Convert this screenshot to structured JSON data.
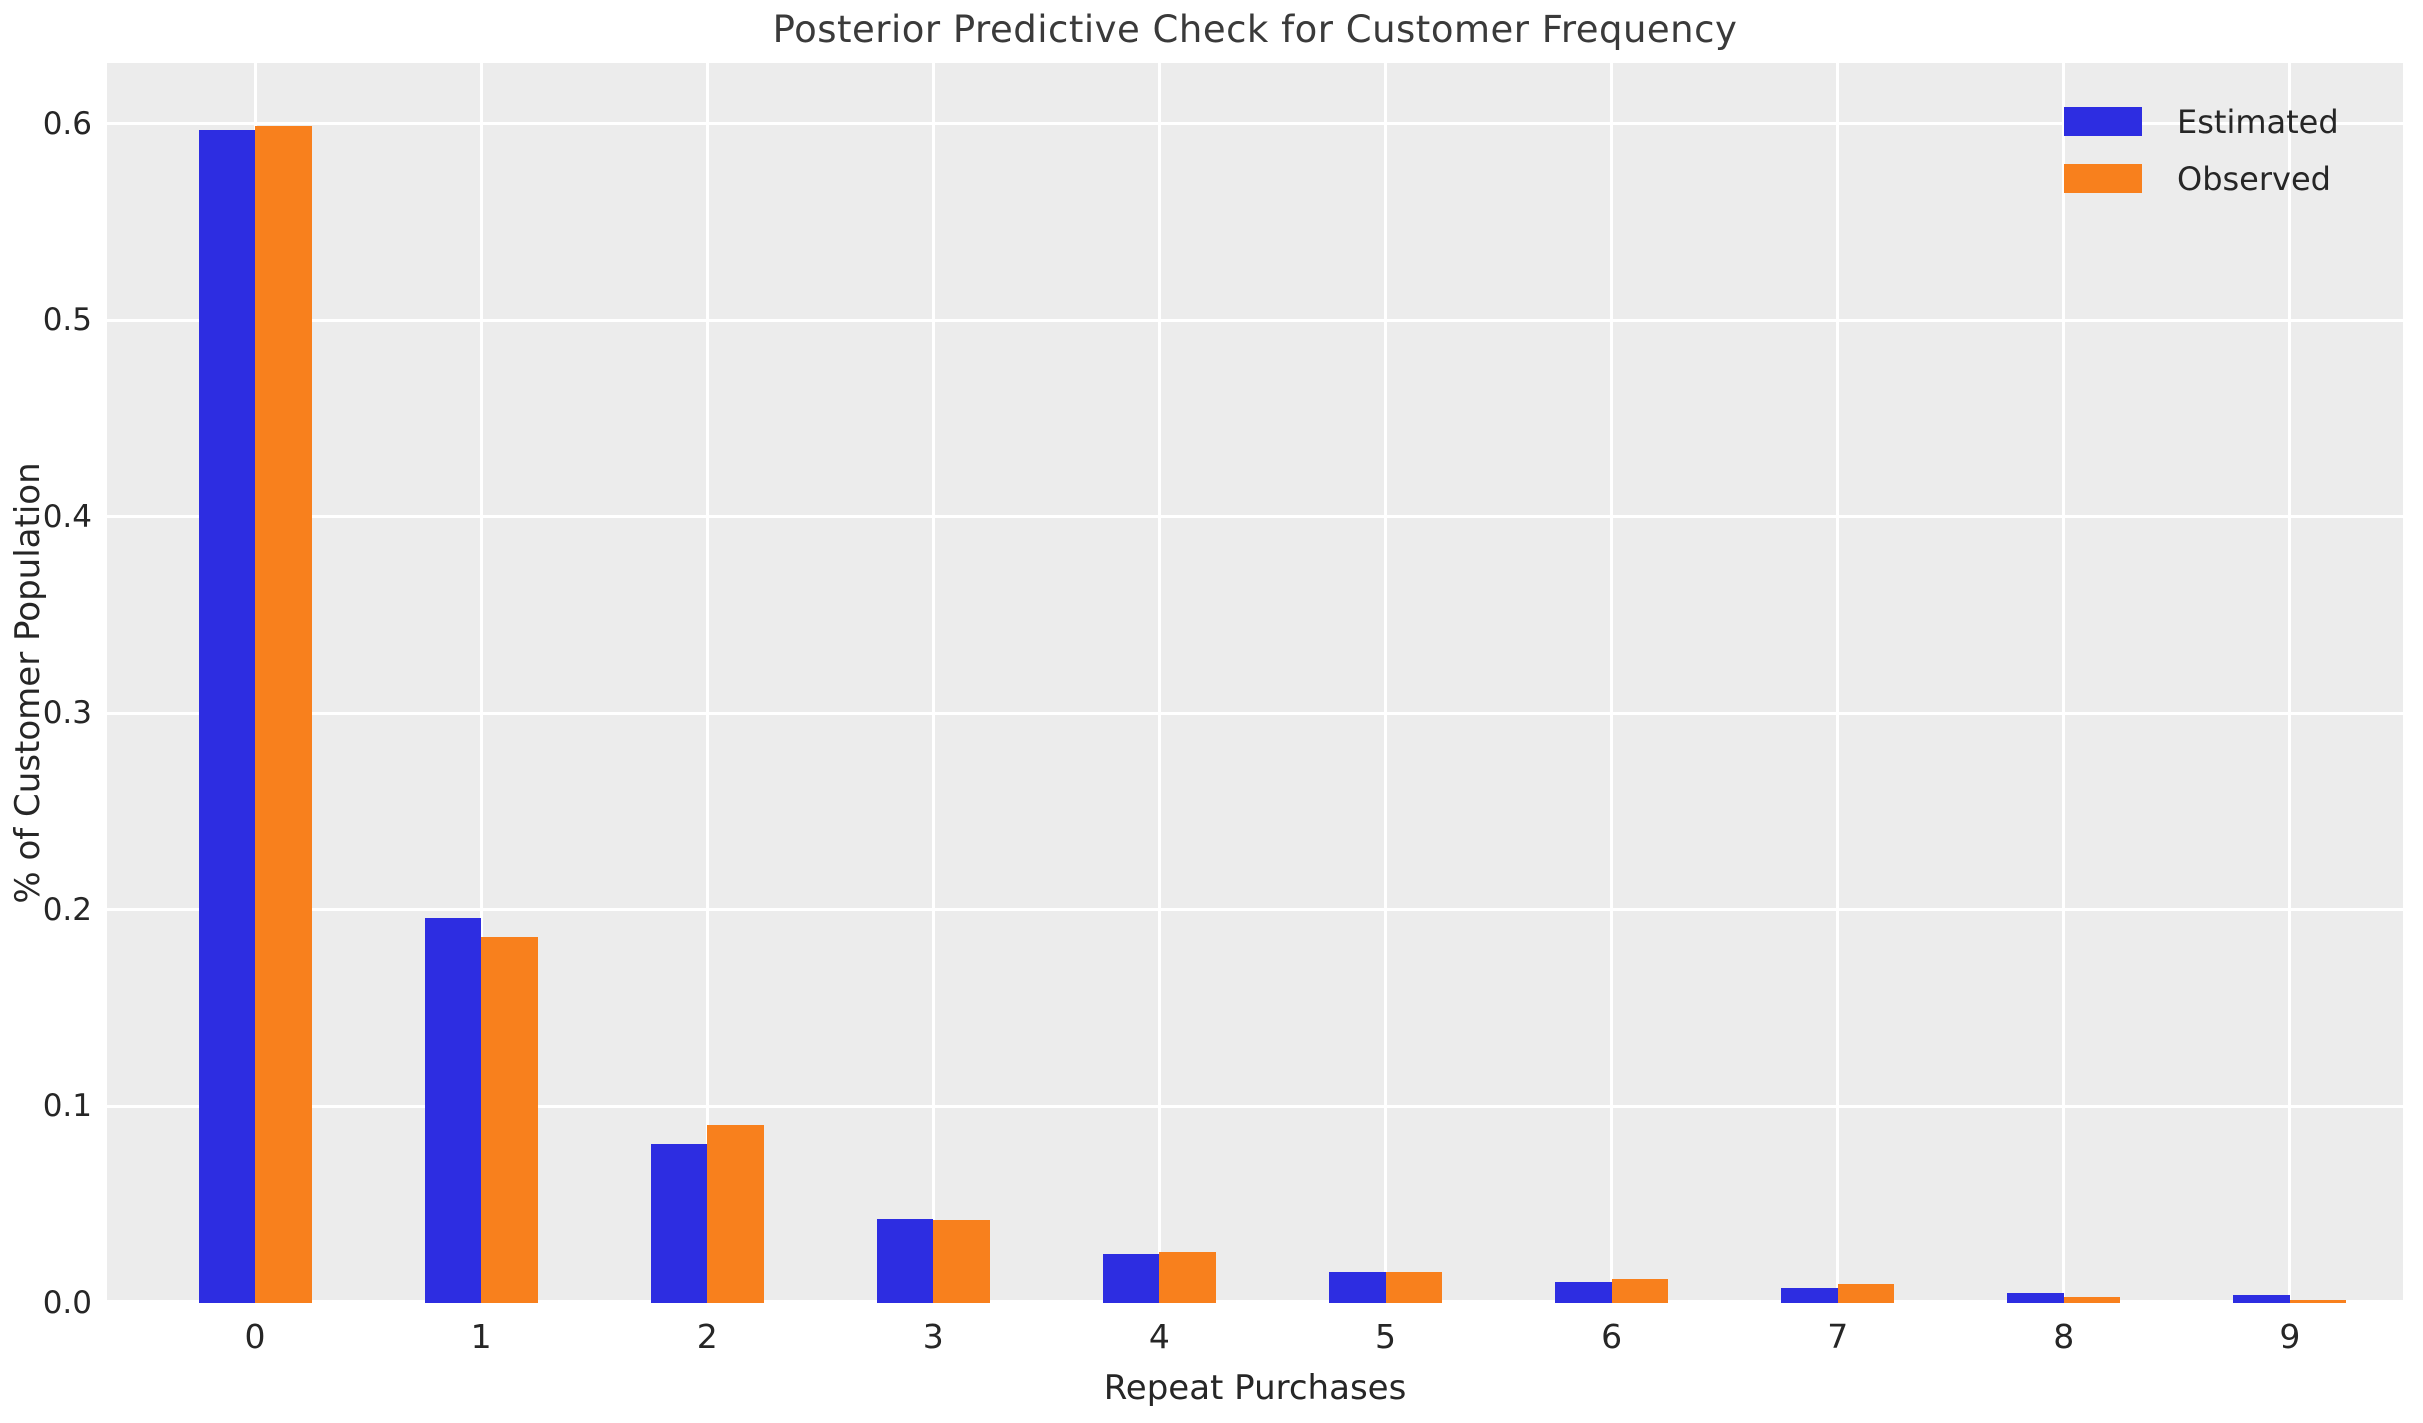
{
  "title": "Posterior Predictive Check for Customer Frequency",
  "chart_data": {
    "type": "bar",
    "title": "Posterior Predictive Check for Customer Frequency",
    "xlabel": "Repeat Purchases",
    "ylabel": "% of Customer Population",
    "categories": [
      "0",
      "1",
      "2",
      "3",
      "4",
      "5",
      "6",
      "7",
      "8",
      "9"
    ],
    "series": [
      {
        "name": "Estimated",
        "color": "#2d2de1",
        "values": [
          0.597,
          0.196,
          0.081,
          0.0425,
          0.0248,
          0.016,
          0.0106,
          0.0077,
          0.005,
          0.004
        ]
      },
      {
        "name": "Observed",
        "color": "#f8801d",
        "values": [
          0.599,
          0.186,
          0.0905,
          0.042,
          0.0257,
          0.0157,
          0.0121,
          0.0098,
          0.0032,
          0.0016
        ]
      }
    ],
    "yticks": [
      0.0,
      0.1,
      0.2,
      0.3,
      0.4,
      0.5,
      0.6
    ],
    "ytick_labels": [
      "0.0",
      "0.1",
      "0.2",
      "0.3",
      "0.4",
      "0.5",
      "0.6"
    ],
    "ylim": [
      0,
      0.631
    ],
    "grid": true,
    "grid_color": "#ffffff",
    "plot_background": "#ececec",
    "legend_position": "upper right",
    "legend_entries": [
      "Estimated",
      "Observed"
    ]
  }
}
